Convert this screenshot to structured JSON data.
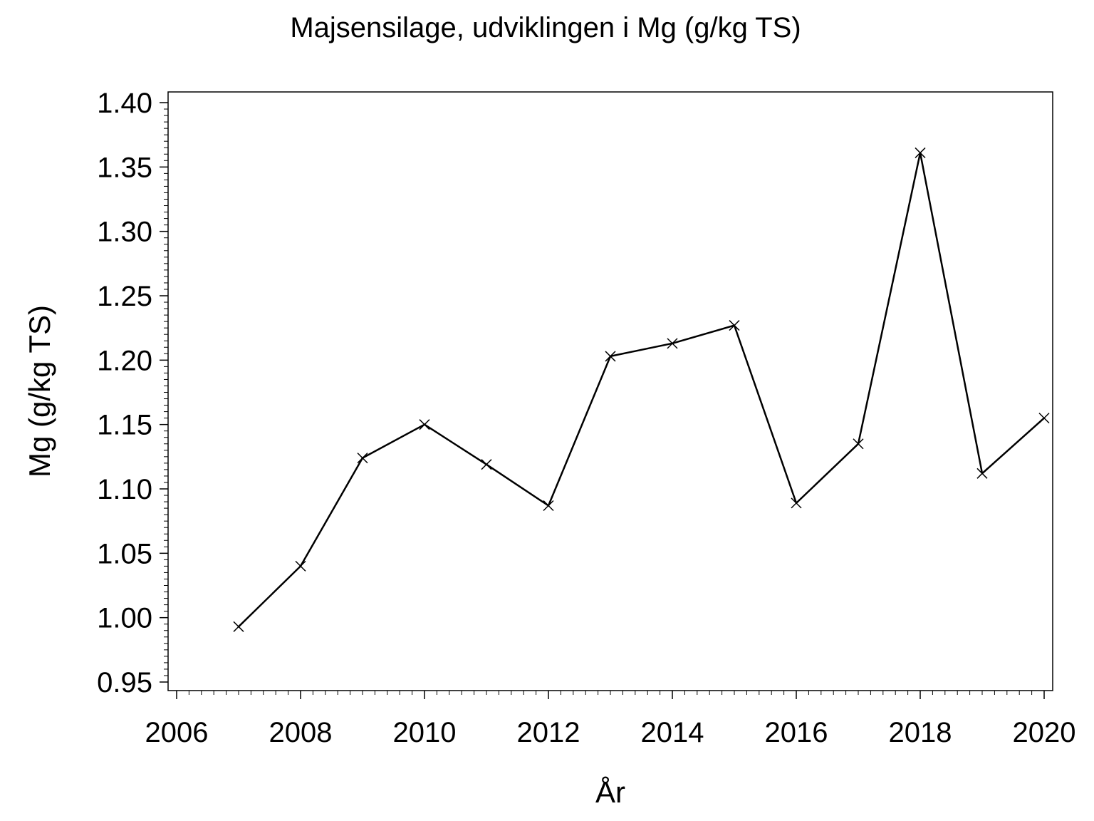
{
  "chart_data": {
    "type": "line",
    "title": "Majsensilage, udviklingen i Mg (g/kg TS)",
    "xlabel": "År",
    "ylabel": "Mg (g/kg TS)",
    "xlim": [
      2006,
      2020
    ],
    "ylim": [
      0.95,
      1.4
    ],
    "x_ticks": [
      2006,
      2008,
      2010,
      2012,
      2014,
      2016,
      2018,
      2020
    ],
    "y_ticks": [
      "0.95",
      "1.00",
      "1.05",
      "1.10",
      "1.15",
      "1.20",
      "1.25",
      "1.30",
      "1.35",
      "1.40"
    ],
    "grid": false,
    "marker": "x",
    "line_color": "#000000",
    "series": [
      {
        "x": [
          2007,
          2008,
          2009,
          2010,
          2011,
          2012,
          2013,
          2014,
          2015,
          2016,
          2017,
          2018,
          2019,
          2020
        ],
        "values": [
          0.993,
          1.04,
          1.124,
          1.15,
          1.119,
          1.087,
          1.203,
          1.213,
          1.227,
          1.089,
          1.135,
          1.361,
          1.112,
          1.155
        ]
      }
    ]
  }
}
